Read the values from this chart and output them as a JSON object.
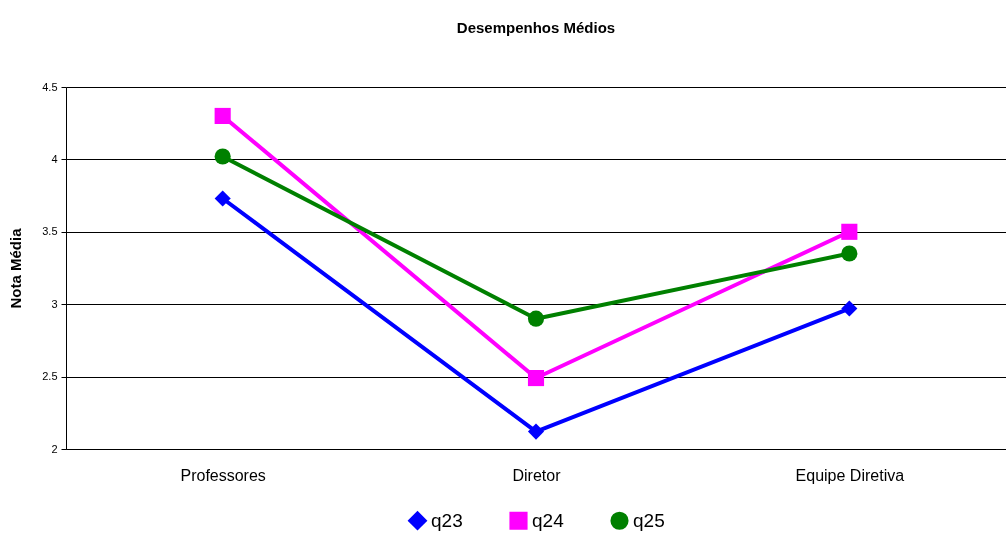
{
  "chart_data": {
    "type": "line",
    "title": "Desempenhos Médios",
    "ylabel": "Nota Média",
    "categories": [
      "Professores",
      "Diretor",
      "Equipe Diretiva"
    ],
    "series": [
      {
        "name": "q23",
        "color": "#0000ff",
        "marker": "diamond",
        "values": [
          3.73,
          2.12,
          2.97
        ]
      },
      {
        "name": "q24",
        "color": "#ff00ff",
        "marker": "square",
        "values": [
          4.3,
          2.49,
          3.5
        ]
      },
      {
        "name": "q25",
        "color": "#008000",
        "marker": "circle",
        "values": [
          4.02,
          2.9,
          3.35
        ]
      }
    ],
    "ylim": [
      2,
      4.5
    ],
    "yticks": [
      2,
      2.5,
      3,
      3.5,
      4,
      4.5
    ],
    "grid": "y",
    "legend": "bottom"
  }
}
